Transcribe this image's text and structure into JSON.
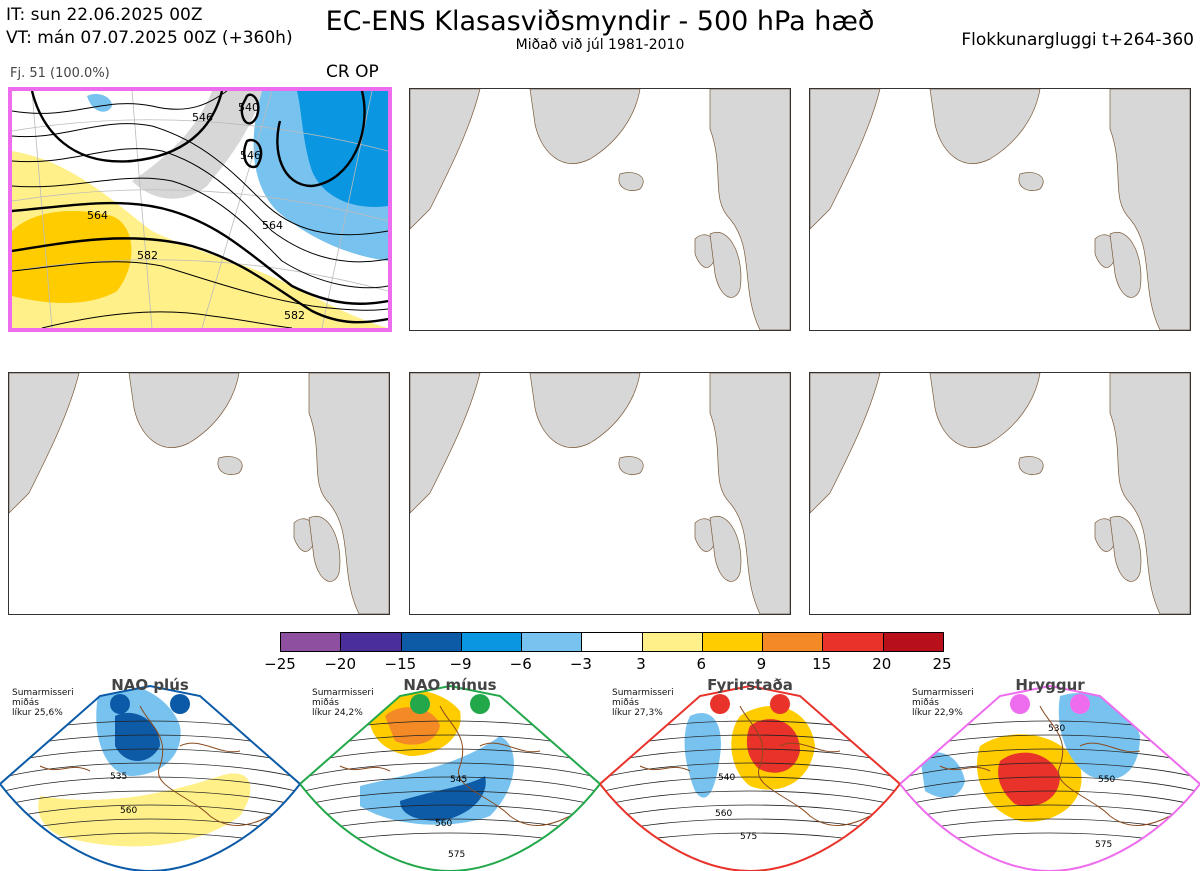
{
  "header": {
    "init_time": "IT: sun 22.06.2025 00Z",
    "valid_time": "VT: mán 07.07.2025 00Z  (+360h)",
    "title": "EC-ENS Klasasviðsmyndir - 500 hPa hæð",
    "subtitle": "Miðað við júl 1981-2010",
    "window": "Flokkunargluggi t+264-360"
  },
  "cluster": {
    "info": "Fj. 51 (100.0%)",
    "tag": "CR OP",
    "contour_labels": [
      "546",
      "540",
      "546",
      "564",
      "564",
      "582",
      "582"
    ]
  },
  "colorbar": {
    "colors": [
      "#8e4fa0",
      "#4a2e9a",
      "#0d5aa7",
      "#0a96e0",
      "#78c2ef",
      "#ffffff",
      "#fff08a",
      "#ffcc00",
      "#f48a26",
      "#e8322a",
      "#b8101a"
    ],
    "labels": [
      "−25",
      "−20",
      "−15",
      "−9",
      "−6",
      "−3",
      "3",
      "6",
      "9",
      "15",
      "20",
      "25"
    ]
  },
  "regimes": [
    {
      "name": "NAO plús",
      "line1": "Sumarmisseri",
      "line2": "miðás",
      "line3": "líkur 25,6%",
      "color": "#0b5aa8",
      "contours": [
        "535",
        "560"
      ]
    },
    {
      "name": "NAO mínus",
      "line1": "Sumarmisseri",
      "line2": "miðás",
      "line3": "líkur 24,2%",
      "color": "#22a84a",
      "contours": [
        "545",
        "560",
        "575"
      ]
    },
    {
      "name": "Fyrirstaða",
      "line1": "Sumarmisseri",
      "line2": "miðás",
      "line3": "líkur 27,3%",
      "color": "#e8322a",
      "contours": [
        "540",
        "560",
        "575"
      ]
    },
    {
      "name": "Hryggur",
      "line1": "Sumarmisseri",
      "line2": "miðás",
      "line3": "líkur 22,9%",
      "color": "#ee6cee",
      "contours": [
        "530",
        "550",
        "575"
      ]
    }
  ]
}
